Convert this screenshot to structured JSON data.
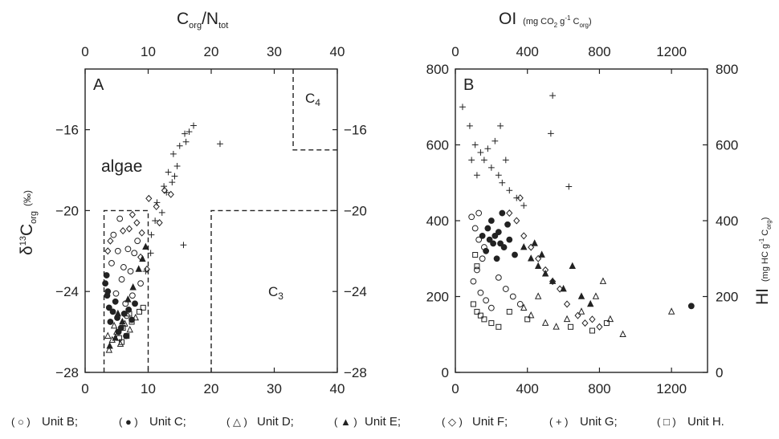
{
  "legend": {
    "items": [
      {
        "symbol": "○",
        "label": "Unit B;"
      },
      {
        "symbol": "●",
        "label": "Unit C;"
      },
      {
        "symbol": "△",
        "label": "Unit D;"
      },
      {
        "symbol": "▲",
        "label": "Unit E;"
      },
      {
        "symbol": "◇",
        "label": "Unit F;"
      },
      {
        "symbol": "+",
        "label": "Unit G;"
      },
      {
        "symbol": "□",
        "label": "Unit H."
      }
    ]
  },
  "chart_data": [
    {
      "panel": "A",
      "type": "scatter",
      "xlabel_top": {
        "main": "C",
        "sub1": "org",
        "slash": "/N",
        "sub2": "tot"
      },
      "ylabel": {
        "pre": "δ",
        "sup": "13",
        "main": "C",
        "sub": "org",
        "unit": "(‰)"
      },
      "xlim": [
        0,
        40
      ],
      "ylim": [
        -28,
        -13
      ],
      "xticks": [
        "0",
        "10",
        "20",
        "30",
        "40"
      ],
      "yticks": [
        "-16",
        "-20",
        "-24",
        "-28"
      ],
      "yticks_right": [
        "-16",
        "-20",
        "-24",
        "-28"
      ],
      "region_labels": [
        {
          "text": "algae",
          "x": 6.5,
          "y": -18.8
        },
        {
          "text": "C",
          "sub": "4",
          "x": 36.2,
          "y": -14.6
        },
        {
          "text": "C",
          "sub": "3",
          "x": 31.5,
          "y": -24.8
        }
      ],
      "regions": [
        {
          "name": "algae",
          "x": [
            3,
            10
          ],
          "y": [
            -28,
            -20
          ]
        },
        {
          "name": "C3",
          "x": [
            20,
            40
          ],
          "y": [
            -28,
            -20
          ]
        },
        {
          "name": "C4",
          "x": [
            33,
            40
          ],
          "y": [
            -17,
            -13
          ]
        }
      ],
      "series": [
        {
          "name": "Unit B",
          "marker": "circle-open",
          "points": [
            [
              4.5,
              -21.2
            ],
            [
              5.2,
              -22.0
            ],
            [
              6.1,
              -22.8
            ],
            [
              5.8,
              -23.4
            ],
            [
              4.9,
              -24.1
            ],
            [
              6.4,
              -24.6
            ],
            [
              7.2,
              -23.0
            ],
            [
              7.8,
              -22.1
            ],
            [
              8.3,
              -21.5
            ],
            [
              6.8,
              -21.9
            ],
            [
              5.5,
              -20.4
            ],
            [
              4.2,
              -22.6
            ],
            [
              7.5,
              -24.2
            ],
            [
              8.8,
              -23.6
            ],
            [
              6.6,
              -25.2
            ]
          ]
        },
        {
          "name": "Unit C",
          "marker": "circle-filled",
          "points": [
            [
              3.2,
              -23.6
            ],
            [
              3.5,
              -24.2
            ],
            [
              3.8,
              -24.8
            ],
            [
              4.4,
              -25.0
            ],
            [
              5.1,
              -25.3
            ],
            [
              5.7,
              -25.8
            ],
            [
              6.2,
              -25.1
            ],
            [
              4.8,
              -24.5
            ],
            [
              6.9,
              -24.9
            ],
            [
              7.4,
              -25.4
            ],
            [
              5.3,
              -26.0
            ],
            [
              3.4,
              -23.2
            ],
            [
              4.0,
              -25.5
            ],
            [
              6.5,
              -26.2
            ],
            [
              7.9,
              -24.6
            ],
            [
              3.6,
              -24.0
            ]
          ]
        },
        {
          "name": "Unit D",
          "marker": "triangle-open",
          "points": [
            [
              3.8,
              -26.9
            ],
            [
              4.3,
              -26.4
            ],
            [
              5.0,
              -26.0
            ],
            [
              5.6,
              -26.6
            ],
            [
              6.3,
              -25.6
            ],
            [
              7.1,
              -25.9
            ],
            [
              4.6,
              -25.7
            ],
            [
              8.0,
              -25.3
            ],
            [
              3.6,
              -26.2
            ]
          ]
        },
        {
          "name": "Unit E",
          "marker": "triangle-filled",
          "points": [
            [
              3.9,
              -26.7
            ],
            [
              4.8,
              -26.3
            ],
            [
              5.9,
              -25.5
            ],
            [
              6.8,
              -24.4
            ],
            [
              7.6,
              -23.8
            ],
            [
              8.5,
              -22.9
            ],
            [
              9.1,
              -22.4
            ],
            [
              9.6,
              -21.8
            ],
            [
              5.2,
              -25.1
            ]
          ]
        },
        {
          "name": "Unit F",
          "marker": "diamond-open",
          "points": [
            [
              6.0,
              -21.0
            ],
            [
              7.0,
              -20.9
            ],
            [
              8.2,
              -20.6
            ],
            [
              9.0,
              -21.1
            ],
            [
              10.1,
              -19.4
            ],
            [
              11.3,
              -19.8
            ],
            [
              12.6,
              -19.0
            ],
            [
              13.6,
              -19.2
            ],
            [
              7.5,
              -20.2
            ],
            [
              8.8,
              -22.3
            ],
            [
              9.8,
              -22.9
            ],
            [
              11.8,
              -20.6
            ],
            [
              3.6,
              -22.0
            ],
            [
              4.0,
              -21.5
            ]
          ]
        },
        {
          "name": "Unit G",
          "marker": "plus",
          "points": [
            [
              14.0,
              -17.2
            ],
            [
              15.0,
              -16.8
            ],
            [
              15.8,
              -16.2
            ],
            [
              16.5,
              -16.1
            ],
            [
              17.2,
              -15.8
            ],
            [
              21.4,
              -16.7
            ],
            [
              13.2,
              -18.1
            ],
            [
              13.8,
              -18.6
            ],
            [
              12.9,
              -19.1
            ],
            [
              14.6,
              -17.8
            ],
            [
              11.4,
              -19.6
            ],
            [
              12.2,
              -20.1
            ],
            [
              10.5,
              -21.2
            ],
            [
              15.6,
              -21.7
            ],
            [
              9.6,
              -23.0
            ],
            [
              10.4,
              -22.1
            ],
            [
              16.0,
              -16.6
            ],
            [
              14.2,
              -18.3
            ],
            [
              12.5,
              -18.8
            ],
            [
              11.1,
              -20.5
            ]
          ]
        },
        {
          "name": "Unit H",
          "marker": "square-open",
          "points": [
            [
              5.4,
              -26.3
            ],
            [
              6.0,
              -25.8
            ],
            [
              6.6,
              -26.2
            ],
            [
              7.4,
              -25.5
            ],
            [
              8.6,
              -25.0
            ],
            [
              9.2,
              -24.8
            ],
            [
              5.8,
              -26.5
            ],
            [
              7.0,
              -25.1
            ]
          ]
        }
      ]
    },
    {
      "panel": "B",
      "type": "scatter",
      "xlabel_top": {
        "main": "OI",
        "unit_pre": "(mg CO",
        "unit_sub": "2",
        "unit_mid": " g",
        "unit_sup": "-1",
        "unit_post": " C",
        "unit_sub2": "org",
        "unit_end": ")"
      },
      "ylabel_right": {
        "main": "HI",
        "unit_pre": "(mg HC g",
        "unit_sup": "-1",
        "unit_post": " C",
        "unit_sub": "org",
        "unit_end": ")"
      },
      "xlim": [
        0,
        1400
      ],
      "ylim": [
        0,
        800
      ],
      "xticks_bottom": [
        "0",
        "400",
        "800",
        "1200"
      ],
      "xticks_top": [
        "0",
        "400",
        "800",
        "1200"
      ],
      "yticks": [
        "0",
        "200",
        "400",
        "600",
        "800"
      ],
      "yticks_right": [
        "0",
        "200",
        "400",
        "600",
        "800"
      ],
      "series": [
        {
          "name": "Unit B",
          "marker": "circle-open",
          "points": [
            [
              90,
              410
            ],
            [
              110,
              380
            ],
            [
              130,
              350
            ],
            [
              150,
              300
            ],
            [
              120,
              270
            ],
            [
              100,
              240
            ],
            [
              140,
              210
            ],
            [
              170,
              190
            ],
            [
              200,
              170
            ],
            [
              240,
              250
            ],
            [
              280,
              220
            ],
            [
              320,
              200
            ],
            [
              360,
              180
            ],
            [
              130,
              420
            ],
            [
              160,
              330
            ]
          ]
        },
        {
          "name": "Unit C",
          "marker": "circle-filled",
          "points": [
            [
              150,
              360
            ],
            [
              180,
              380
            ],
            [
              210,
              340
            ],
            [
              240,
              370
            ],
            [
              270,
              330
            ],
            [
              300,
              350
            ],
            [
              330,
              310
            ],
            [
              200,
              400
            ],
            [
              260,
              420
            ],
            [
              230,
              300
            ],
            [
              170,
              320
            ],
            [
              290,
              390
            ],
            [
              1310,
              175
            ],
            [
              220,
              360
            ],
            [
              250,
              340
            ],
            [
              190,
              350
            ]
          ]
        },
        {
          "name": "Unit D",
          "marker": "triangle-open",
          "points": [
            [
              420,
              150
            ],
            [
              500,
              130
            ],
            [
              560,
              120
            ],
            [
              620,
              140
            ],
            [
              700,
              160
            ],
            [
              780,
              200
            ],
            [
              820,
              240
            ],
            [
              860,
              140
            ],
            [
              930,
              100
            ],
            [
              1200,
              160
            ],
            [
              380,
              170
            ],
            [
              460,
              200
            ]
          ]
        },
        {
          "name": "Unit E",
          "marker": "triangle-filled",
          "points": [
            [
              380,
              330
            ],
            [
              420,
              300
            ],
            [
              460,
              280
            ],
            [
              500,
              260
            ],
            [
              540,
              240
            ],
            [
              600,
              220
            ],
            [
              650,
              280
            ],
            [
              700,
              200
            ],
            [
              750,
              180
            ],
            [
              440,
              340
            ],
            [
              480,
              310
            ]
          ]
        },
        {
          "name": "Unit F",
          "marker": "diamond-open",
          "points": [
            [
              300,
              420
            ],
            [
              340,
              400
            ],
            [
              380,
              360
            ],
            [
              420,
              330
            ],
            [
              460,
              300
            ],
            [
              500,
              270
            ],
            [
              540,
              240
            ],
            [
              580,
              220
            ],
            [
              620,
              180
            ],
            [
              680,
              150
            ],
            [
              720,
              130
            ],
            [
              760,
              140
            ],
            [
              800,
              120
            ],
            [
              360,
              460
            ]
          ]
        },
        {
          "name": "Unit G",
          "marker": "plus",
          "points": [
            [
              40,
              700
            ],
            [
              80,
              650
            ],
            [
              110,
              600
            ],
            [
              140,
              580
            ],
            [
              160,
              560
            ],
            [
              200,
              540
            ],
            [
              240,
              520
            ],
            [
              260,
              500
            ],
            [
              300,
              480
            ],
            [
              340,
              460
            ],
            [
              380,
              440
            ],
            [
              250,
              650
            ],
            [
              530,
              630
            ],
            [
              540,
              730
            ],
            [
              630,
              490
            ],
            [
              180,
              590
            ],
            [
              220,
              610
            ],
            [
              120,
              520
            ],
            [
              90,
              560
            ],
            [
              280,
              560
            ]
          ]
        },
        {
          "name": "Unit H",
          "marker": "square-open",
          "points": [
            [
              100,
              180
            ],
            [
              120,
              160
            ],
            [
              140,
              150
            ],
            [
              160,
              140
            ],
            [
              200,
              130
            ],
            [
              240,
              120
            ],
            [
              300,
              160
            ],
            [
              400,
              140
            ],
            [
              640,
              120
            ],
            [
              760,
              110
            ],
            [
              840,
              130
            ],
            [
              120,
              280
            ],
            [
              110,
              310
            ]
          ]
        }
      ]
    }
  ]
}
